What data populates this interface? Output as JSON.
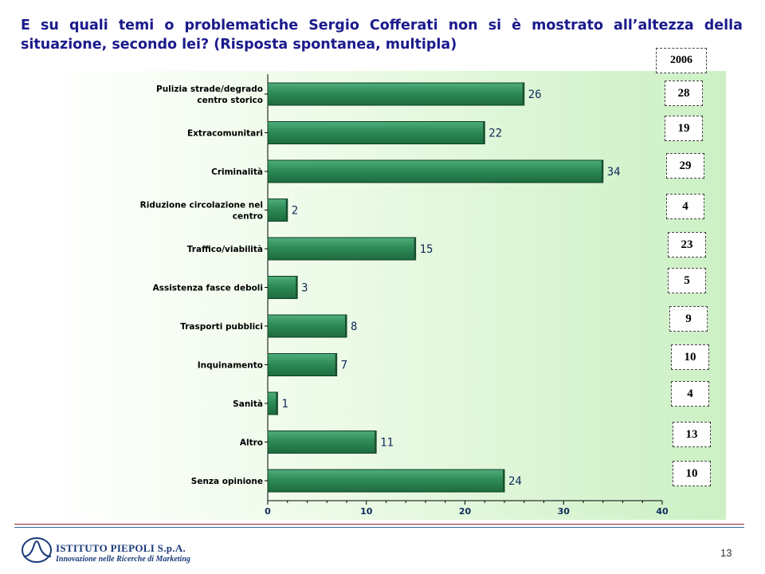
{
  "title": "E su quali temi o problematiche Sergio Cofferati non si è mostrato all’altezza della situazione, secondo lei? (Risposta spontanea, multipla)",
  "chart_data": {
    "type": "bar",
    "orientation": "horizontal",
    "categories": [
      [
        "Pulizia strade/degrado",
        "centro storico"
      ],
      [
        "Extracomunitari"
      ],
      [
        "Criminalità"
      ],
      [
        "Riduzione circolazione nel",
        "centro"
      ],
      [
        "Traffico/viabilità"
      ],
      [
        "Assistenza fasce deboli"
      ],
      [
        "Trasporti pubblici"
      ],
      [
        "Inquinamento"
      ],
      [
        "Sanità"
      ],
      [
        "Altro"
      ],
      [
        "Senza opinione"
      ]
    ],
    "values": [
      26,
      22,
      34,
      2,
      15,
      3,
      8,
      7,
      1,
      11,
      24
    ],
    "xlim": [
      0,
      40
    ],
    "xticks": [
      "0",
      "10",
      "20",
      "30",
      "40"
    ],
    "bar_color": "#2e8b57",
    "grid": false,
    "legend": "none"
  },
  "comparison": {
    "header": "2006",
    "values": [
      "28",
      "19",
      "29",
      "4",
      "23",
      "5",
      "9",
      "10",
      "4",
      "13",
      "10"
    ]
  },
  "footer": {
    "logo_name": "ISTITUTO PIEPOLI S.p.A.",
    "logo_tagline": "Innovazione nelle Ricerche di Marketing",
    "page_number": "13"
  }
}
